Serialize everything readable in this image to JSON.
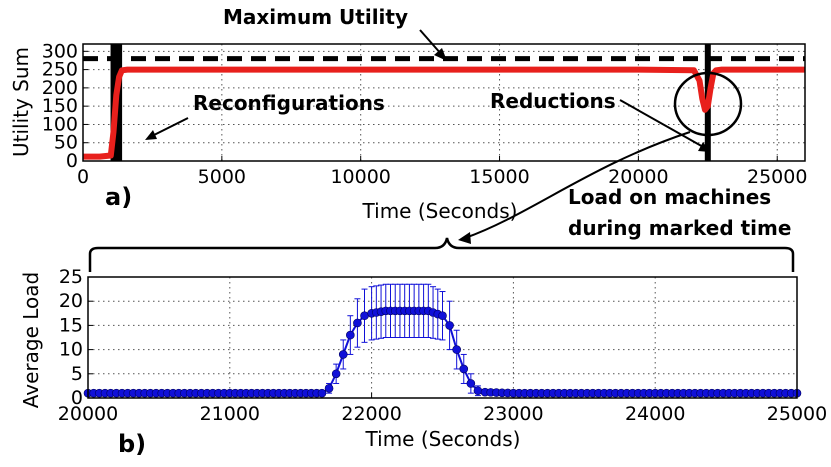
{
  "chart_data": [
    {
      "type": "line",
      "panel_label": "a)",
      "xlabel": "Time (Seconds)",
      "ylabel": "Utility Sum",
      "xlim": [
        0,
        26000
      ],
      "ylim": [
        0,
        320
      ],
      "xticks": [
        0,
        5000,
        10000,
        15000,
        20000,
        25000
      ],
      "yticks": [
        0,
        50,
        100,
        150,
        200,
        250,
        300
      ],
      "grid": true,
      "max_utility": 280,
      "series": [
        {
          "color": "#e8201c",
          "x": [
            0,
            600,
            1000,
            1100,
            1200,
            1300,
            1400,
            1600,
            2000,
            5000,
            10000,
            15000,
            20000,
            22000,
            22200,
            22300,
            22400,
            22500,
            22600,
            22700,
            22800,
            23000,
            24000,
            26000
          ],
          "y": [
            12,
            12,
            15,
            80,
            180,
            230,
            248,
            250,
            250,
            250,
            250,
            250,
            250,
            248,
            220,
            170,
            140,
            150,
            200,
            240,
            248,
            250,
            250,
            250
          ]
        }
      ],
      "marked_times": [
        1100,
        1300,
        22500
      ],
      "annotations": {
        "max_utility": "Maximum Utility",
        "reconfigurations": "Reconfigurations",
        "reductions": "Reductions",
        "load_line1": "Load on machines",
        "load_line2": "during marked time"
      }
    },
    {
      "type": "line",
      "panel_label": "b)",
      "xlabel": "Time (Seconds)",
      "ylabel": "Average Load",
      "xlim": [
        20000,
        25000
      ],
      "ylim": [
        0,
        25
      ],
      "xticks": [
        20000,
        21000,
        22000,
        23000,
        24000,
        25000
      ],
      "yticks": [
        0,
        5,
        10,
        15,
        20,
        25
      ],
      "grid": true,
      "series": [
        {
          "color": "#1010d8",
          "error_bars": true,
          "x": [
            20000,
            21000,
            21500,
            21650,
            21700,
            21750,
            21800,
            21850,
            21900,
            21950,
            22000,
            22100,
            22200,
            22300,
            22400,
            22500,
            22550,
            22600,
            22650,
            22700,
            22750,
            22800,
            23000,
            24000,
            25000
          ],
          "y": [
            1,
            1,
            1,
            1,
            2,
            5,
            9,
            13,
            15.5,
            17,
            17.5,
            18,
            18,
            18,
            18,
            17,
            15,
            10,
            6,
            3,
            1.5,
            1.2,
            1,
            1,
            1
          ],
          "err": [
            0.3,
            0.3,
            0.3,
            0.3,
            1,
            2,
            3,
            4,
            5,
            5.5,
            5.5,
            5.5,
            5.5,
            5.5,
            5.5,
            5,
            5,
            4,
            3,
            2,
            1,
            0.5,
            0.3,
            0.3,
            0.3
          ]
        }
      ]
    }
  ]
}
